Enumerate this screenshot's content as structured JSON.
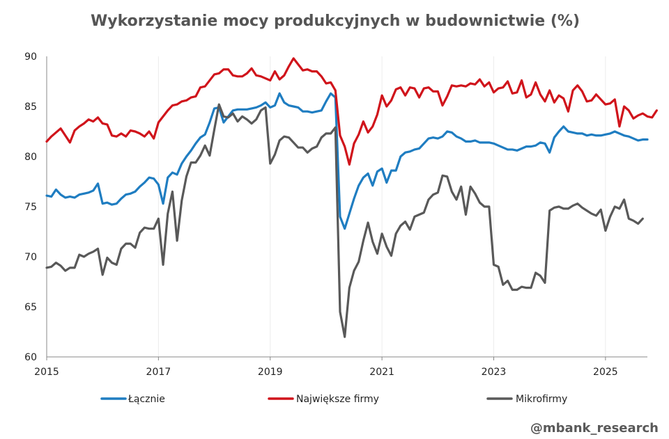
{
  "chart_data": {
    "type": "line",
    "title": "Wykorzystanie mocy produkcyjnych w budownictwie (%)",
    "xlabel": "",
    "ylabel": "",
    "ylim": [
      60,
      90
    ],
    "xlim": [
      2015.0,
      2025.75
    ],
    "x_ticks": [
      "2015",
      "2017",
      "2019",
      "2021",
      "2023",
      "2025"
    ],
    "y_ticks": [
      "60",
      "65",
      "70",
      "75",
      "80",
      "85",
      "90"
    ],
    "grid": "vertical",
    "legend_position": "bottom",
    "frequency": "monthly",
    "start": "2015-01",
    "series": [
      {
        "name": "Łącznie",
        "color": "#1f7dc1",
        "values": [
          76.1,
          76.0,
          76.7,
          76.2,
          75.9,
          76.0,
          75.9,
          76.2,
          76.3,
          76.4,
          76.6,
          77.3,
          75.3,
          75.4,
          75.2,
          75.3,
          75.8,
          76.2,
          76.3,
          76.5,
          77.0,
          77.4,
          77.9,
          77.8,
          77.2,
          75.3,
          77.9,
          78.4,
          78.2,
          79.3,
          80.0,
          80.6,
          81.3,
          81.9,
          82.2,
          83.4,
          84.8,
          84.9,
          83.4,
          84.0,
          84.6,
          84.7,
          84.7,
          84.7,
          84.8,
          84.9,
          85.1,
          85.4,
          84.9,
          85.1,
          86.3,
          85.4,
          85.1,
          85.0,
          84.9,
          84.5,
          84.5,
          84.4,
          84.5,
          84.6,
          85.5,
          86.3,
          85.9,
          74.0,
          72.8,
          74.3,
          75.8,
          77.1,
          77.9,
          78.3,
          77.1,
          78.5,
          78.8,
          77.4,
          78.6,
          78.6,
          80.0,
          80.4,
          80.5,
          80.7,
          80.8,
          81.3,
          81.8,
          81.9,
          81.8,
          82.0,
          82.5,
          82.4,
          82.0,
          81.8,
          81.5,
          81.5,
          81.6,
          81.4,
          81.4,
          81.4,
          81.3,
          81.1,
          80.9,
          80.7,
          80.7,
          80.6,
          80.8,
          81.0,
          81.0,
          81.1,
          81.4,
          81.3,
          80.4,
          81.9,
          82.5,
          83.0,
          82.5,
          82.4,
          82.3,
          82.3,
          82.1,
          82.2,
          82.1,
          82.1,
          82.2,
          82.3,
          82.5,
          82.3,
          82.1,
          82.0,
          81.8,
          81.6,
          81.7,
          81.7
        ]
      },
      {
        "name": "Największe firmy",
        "color": "#d0141b",
        "values": [
          81.5,
          82.0,
          82.4,
          82.8,
          82.1,
          81.4,
          82.6,
          83.0,
          83.3,
          83.7,
          83.5,
          83.9,
          83.3,
          83.2,
          82.1,
          82.0,
          82.3,
          82.0,
          82.6,
          82.5,
          82.3,
          82.0,
          82.5,
          81.8,
          83.4,
          84.0,
          84.6,
          85.1,
          85.2,
          85.5,
          85.6,
          85.9,
          86.0,
          86.9,
          87.0,
          87.6,
          88.2,
          88.3,
          88.7,
          88.7,
          88.1,
          88.0,
          88.0,
          88.3,
          88.8,
          88.1,
          88.0,
          87.8,
          87.6,
          88.5,
          87.7,
          88.1,
          89.0,
          89.8,
          89.2,
          88.6,
          88.7,
          88.5,
          88.5,
          88.0,
          87.3,
          87.4,
          86.6,
          82.1,
          81.0,
          79.2,
          81.3,
          82.2,
          83.5,
          82.4,
          83.0,
          84.2,
          86.1,
          85.0,
          85.6,
          86.7,
          86.9,
          86.1,
          86.9,
          86.8,
          85.9,
          86.8,
          86.9,
          86.5,
          86.5,
          85.1,
          86.0,
          87.1,
          87.0,
          87.1,
          87.0,
          87.3,
          87.2,
          87.7,
          87.0,
          87.4,
          86.4,
          86.8,
          86.9,
          87.5,
          86.3,
          86.4,
          87.6,
          85.9,
          86.2,
          87.4,
          86.2,
          85.5,
          86.6,
          85.4,
          86.1,
          85.8,
          84.5,
          86.6,
          87.1,
          86.5,
          85.5,
          85.6,
          86.2,
          85.7,
          85.2,
          85.3,
          85.7,
          83.0,
          85.0,
          84.6,
          83.8,
          84.1,
          84.3,
          84.0,
          83.9,
          84.6
        ]
      },
      {
        "name": "Mikrofirmy",
        "color": "#595959",
        "values": [
          68.9,
          69.0,
          69.4,
          69.1,
          68.6,
          68.9,
          68.9,
          70.2,
          70.0,
          70.3,
          70.5,
          70.8,
          68.2,
          69.9,
          69.4,
          69.2,
          70.8,
          71.3,
          71.3,
          70.9,
          72.4,
          72.9,
          72.8,
          72.8,
          73.8,
          69.2,
          74.3,
          76.5,
          71.6,
          75.6,
          78.0,
          79.4,
          79.4,
          80.1,
          81.1,
          80.1,
          82.7,
          85.2,
          84.0,
          83.9,
          84.3,
          83.5,
          84.0,
          83.7,
          83.3,
          83.7,
          84.6,
          84.9,
          79.3,
          80.2,
          81.6,
          82.0,
          81.9,
          81.4,
          80.9,
          80.9,
          80.4,
          80.8,
          81.0,
          81.9,
          82.3,
          82.3,
          82.9,
          64.5,
          62.0,
          66.9,
          68.6,
          69.5,
          71.6,
          73.4,
          71.5,
          70.3,
          72.3,
          71.0,
          70.1,
          72.3,
          73.1,
          73.5,
          72.7,
          74.0,
          74.2,
          74.4,
          75.7,
          76.2,
          76.4,
          78.1,
          78.0,
          76.5,
          75.7,
          77.0,
          74.2,
          77.0,
          76.3,
          75.4,
          75.0,
          75.0,
          69.2,
          69.0,
          67.2,
          67.6,
          66.7,
          66.7,
          67.0,
          66.9,
          66.9,
          68.4,
          68.1,
          67.4,
          74.6,
          74.9,
          75.0,
          74.8,
          74.8,
          75.1,
          75.3,
          74.9,
          74.6,
          74.3,
          74.1,
          74.7,
          72.6,
          74.0,
          75.0,
          74.8,
          75.7,
          73.8,
          73.6,
          73.3,
          73.8
        ]
      }
    ]
  },
  "watermark": "@mbank_research"
}
